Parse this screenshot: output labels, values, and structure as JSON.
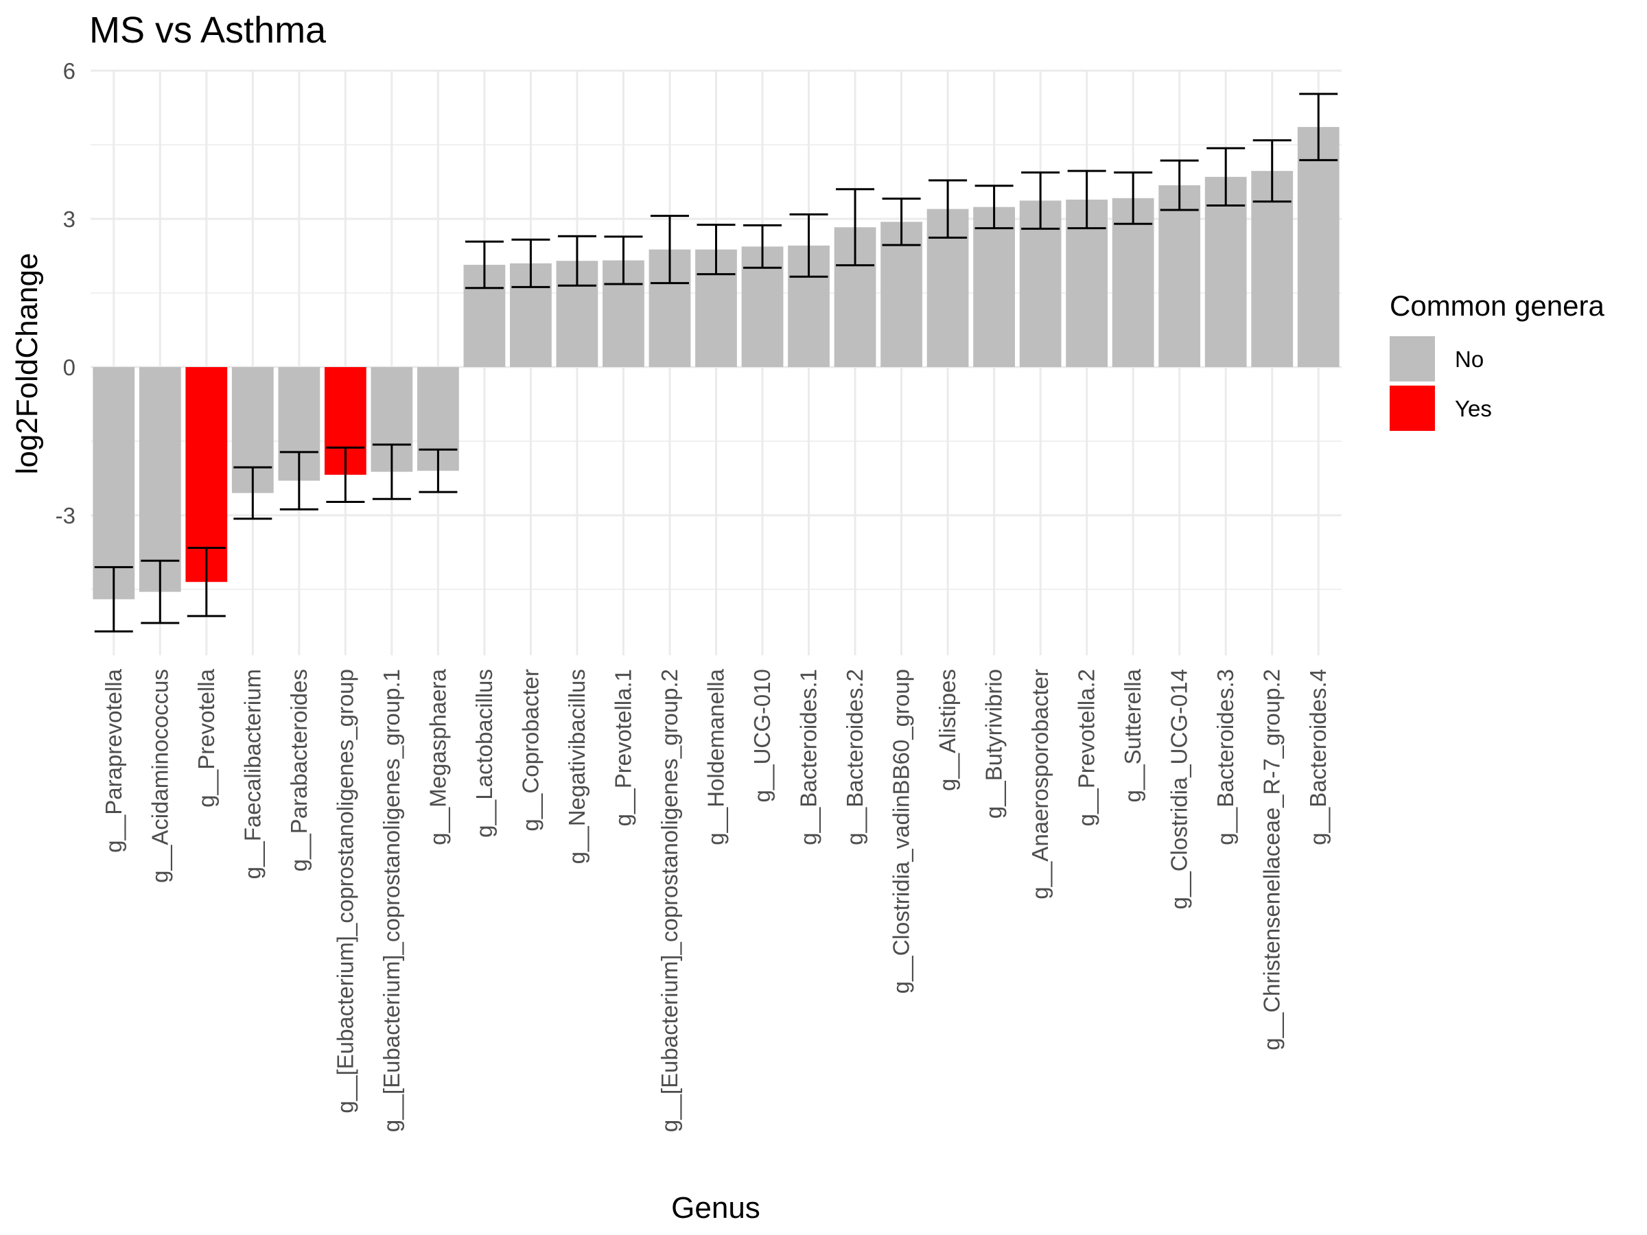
{
  "chart_data": {
    "type": "bar",
    "title": "MS vs Asthma",
    "xlabel": "Genus",
    "ylabel": "log2FoldChange",
    "ylim": [
      -5.8,
      6.3
    ],
    "yticks": [
      6,
      3,
      0,
      -3
    ],
    "ytick_labels": [
      "6",
      "3",
      "0",
      "-3"
    ],
    "grid": true,
    "legend_position": "right",
    "legend": {
      "title": "Common genera",
      "entries": [
        {
          "label": "No",
          "color": "#bebebe"
        },
        {
          "label": "Yes",
          "color": "#ff0000"
        }
      ]
    },
    "categories": [
      "g__Paraprevotella",
      "g__Acidaminococcus",
      "g__Prevotella",
      "g__Faecalibacterium",
      "g__Parabacteroides",
      "g__[Eubacterium]_coprostanoligenes_group",
      "g__[Eubacterium]_coprostanoligenes_group.1",
      "g__Megasphaera",
      "g__Lactobacillus",
      "g__Coprobacter",
      "g__Negativibacillus",
      "g__Prevotella.1",
      "g__[Eubacterium]_coprostanoligenes_group.2",
      "g__Holdemanella",
      "g__UCG-010",
      "g__Bacteroides.1",
      "g__Bacteroides.2",
      "g__Clostridia_vadinBB60_group",
      "g__Alistipes",
      "g__Butyrivibrio",
      "g__Anaerosporobacter",
      "g__Prevotella.2",
      "g__Sutterella",
      "g__Clostridia_UCG-014",
      "g__Bacteroides.3",
      "g__Christensenellaceae_R-7_group.2",
      "g__Bacteroides.4"
    ],
    "values": [
      -4.7,
      -4.55,
      -4.35,
      -2.55,
      -2.3,
      -2.18,
      -2.12,
      -2.1,
      2.07,
      2.1,
      2.15,
      2.16,
      2.38,
      2.38,
      2.44,
      2.46,
      2.83,
      2.94,
      3.2,
      3.24,
      3.37,
      3.39,
      3.42,
      3.68,
      3.85,
      3.97,
      4.86
    ],
    "errors": [
      0.65,
      0.63,
      0.69,
      0.52,
      0.58,
      0.55,
      0.55,
      0.43,
      0.47,
      0.48,
      0.5,
      0.48,
      0.68,
      0.5,
      0.43,
      0.63,
      0.77,
      0.47,
      0.58,
      0.43,
      0.57,
      0.58,
      0.52,
      0.5,
      0.58,
      0.62,
      0.67
    ],
    "common": [
      "No",
      "No",
      "Yes",
      "No",
      "No",
      "Yes",
      "No",
      "No",
      "No",
      "No",
      "No",
      "No",
      "No",
      "No",
      "No",
      "No",
      "No",
      "No",
      "No",
      "No",
      "No",
      "No",
      "No",
      "No",
      "No",
      "No",
      "No"
    ],
    "colors": {
      "No": "#bebebe",
      "Yes": "#ff0000"
    }
  }
}
